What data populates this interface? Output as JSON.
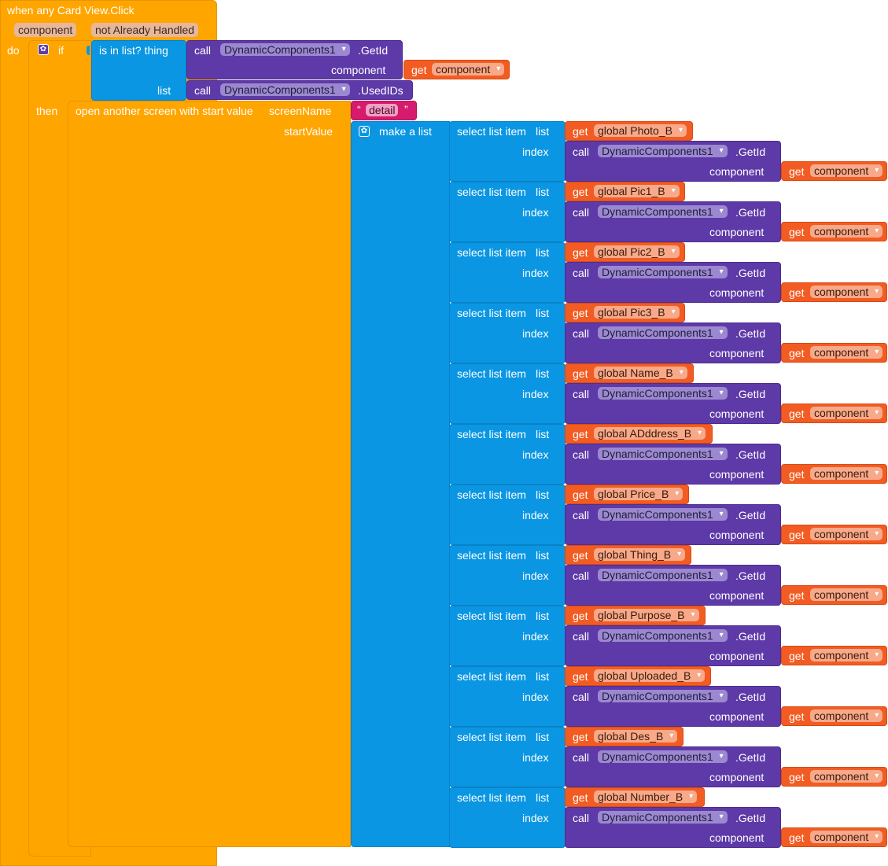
{
  "event": {
    "title": "when any Card View.Click",
    "params": [
      "component",
      "not Already Handled"
    ],
    "do_label": "do"
  },
  "if_block": {
    "if_label": "if",
    "then_label": "then",
    "is_in_list_label": "is in list? thing",
    "list_label": "list",
    "call_label": "call",
    "component_selector": "DynamicComponents1",
    "getid_method": ".GetId",
    "usedids_method": ".UsedIDs",
    "component_arg_label": "component",
    "get_label": "get",
    "component_var": "component"
  },
  "open_screen": {
    "label": "open another screen with start value",
    "screen_name_label": "screenName",
    "screen_name_value": "detail",
    "start_value_label": "startValue",
    "make_a_list_label": "make a list"
  },
  "list_items": [
    {
      "select_label": "select list item",
      "list_label": "list",
      "global_var": "global Photo_B",
      "index_label": "index"
    },
    {
      "select_label": "select list item",
      "list_label": "list",
      "global_var": "global Pic1_B",
      "index_label": "index"
    },
    {
      "select_label": "select list item",
      "list_label": "list",
      "global_var": "global Pic2_B",
      "index_label": "index"
    },
    {
      "select_label": "select list item",
      "list_label": "list",
      "global_var": "global Pic3_B",
      "index_label": "index"
    },
    {
      "select_label": "select list item",
      "list_label": "list",
      "global_var": "global Name_B",
      "index_label": "index"
    },
    {
      "select_label": "select list item",
      "list_label": "list",
      "global_var": "global ADddress_B",
      "index_label": "index"
    },
    {
      "select_label": "select list item",
      "list_label": "list",
      "global_var": "global Price_B",
      "index_label": "index"
    },
    {
      "select_label": "select list item",
      "list_label": "list",
      "global_var": "global Thing_B",
      "index_label": "index"
    },
    {
      "select_label": "select list item",
      "list_label": "list",
      "global_var": "global Purpose_B",
      "index_label": "index"
    },
    {
      "select_label": "select list item",
      "list_label": "list",
      "global_var": "global Uploaded_B",
      "index_label": "index"
    },
    {
      "select_label": "select list item",
      "list_label": "list",
      "global_var": "global Des_B",
      "index_label": "index"
    },
    {
      "select_label": "select list item",
      "list_label": "list",
      "global_var": "global Number_B",
      "index_label": "index"
    }
  ],
  "colors": {
    "event_orange": "#ffa500",
    "list_blue": "#0a96e3",
    "component_purple": "#5e3aa8",
    "variable_red": "#f25c22",
    "text_pink": "#d61a6e"
  },
  "icons": {
    "mutator": "gear-icon"
  }
}
